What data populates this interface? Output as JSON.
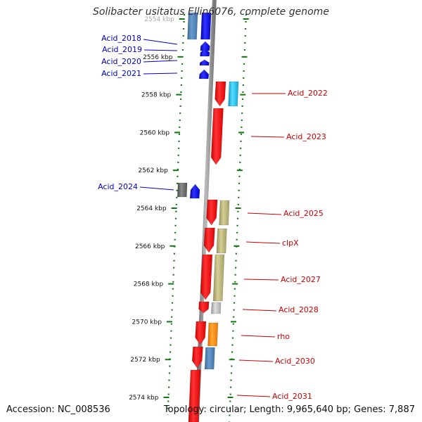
{
  "title": "Solibacter usitatus Ellin6076, complete genome",
  "footer": {
    "accession": "Accession: NC_008536",
    "topology": "Topology: circular; Length: 9,965,640 bp; Genes: 7,887"
  },
  "axis": {
    "unit": "kbp",
    "ticks": [
      "2554 kbp",
      "2556 kbp",
      "2558 kbp",
      "2560 kbp",
      "2562 kbp",
      "2564 kbp",
      "2566 kbp",
      "2568 kbp",
      "2570 kbp",
      "2572 kbp",
      "2574 kbp"
    ]
  },
  "genes_minus": [
    {
      "name": "Acid_2018"
    },
    {
      "name": "Acid_2019"
    },
    {
      "name": "Acid_2020"
    },
    {
      "name": "Acid_2021"
    },
    {
      "name": "Acid_2024"
    }
  ],
  "genes_plus": [
    {
      "name": "Acid_2022"
    },
    {
      "name": "Acid_2023"
    },
    {
      "name": "Acid_2025"
    },
    {
      "name": "clpX"
    },
    {
      "name": "Acid_2027"
    },
    {
      "name": "Acid_2028"
    },
    {
      "name": "rho"
    },
    {
      "name": "Acid_2030"
    },
    {
      "name": "Acid_2031"
    }
  ],
  "colors": {
    "minus_label": "#0000cc",
    "plus_label": "#cc0000",
    "cds_minus": "#0000ff",
    "cds_plus": "#ff0000",
    "dots": "#117711",
    "backbone": "#8a8a8a",
    "steelblue": "#4a7fb5",
    "cyan": "#22bbee",
    "khaki": "#b5ad6e",
    "gray": "#666666",
    "lightgray": "#bbbbbb",
    "orange": "#ff8800"
  }
}
